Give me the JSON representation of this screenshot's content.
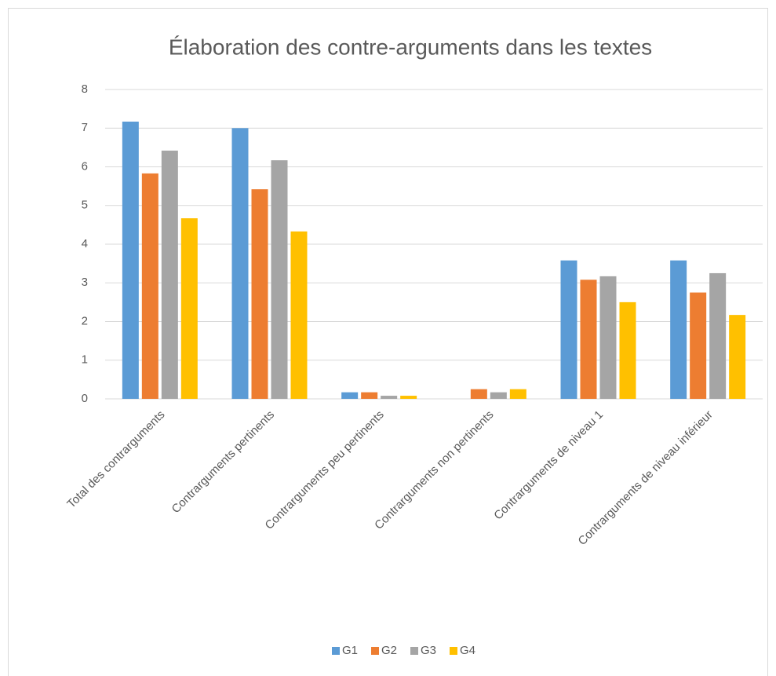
{
  "chart_data": {
    "type": "bar",
    "title": "Élaboration des contre-arguments dans les textes",
    "categories": [
      "Total des contrarguments",
      "Contrarguments pertinents",
      "Contrarguments peu pertinents",
      "Contrarguments non pertinents",
      "Contrarguments de niveau 1",
      "Contrarguments de niveau inférieur"
    ],
    "series": [
      {
        "name": "G1",
        "color": "#5b9bd5",
        "values": [
          7.17,
          7.0,
          0.17,
          0,
          3.58,
          3.58
        ]
      },
      {
        "name": "G2",
        "color": "#ed7d31",
        "values": [
          5.83,
          5.42,
          0.17,
          0.25,
          3.08,
          2.75
        ]
      },
      {
        "name": "G3",
        "color": "#a5a5a5",
        "values": [
          6.42,
          6.17,
          0.08,
          0.17,
          3.17,
          3.25
        ]
      },
      {
        "name": "G4",
        "color": "#ffc000",
        "values": [
          4.67,
          4.33,
          0.08,
          0.25,
          2.5,
          2.17
        ]
      }
    ],
    "ylim": [
      0,
      8
    ],
    "yticks": [
      0,
      1,
      2,
      3,
      4,
      5,
      6,
      7,
      8
    ],
    "grid": true,
    "legend": "bottom"
  }
}
